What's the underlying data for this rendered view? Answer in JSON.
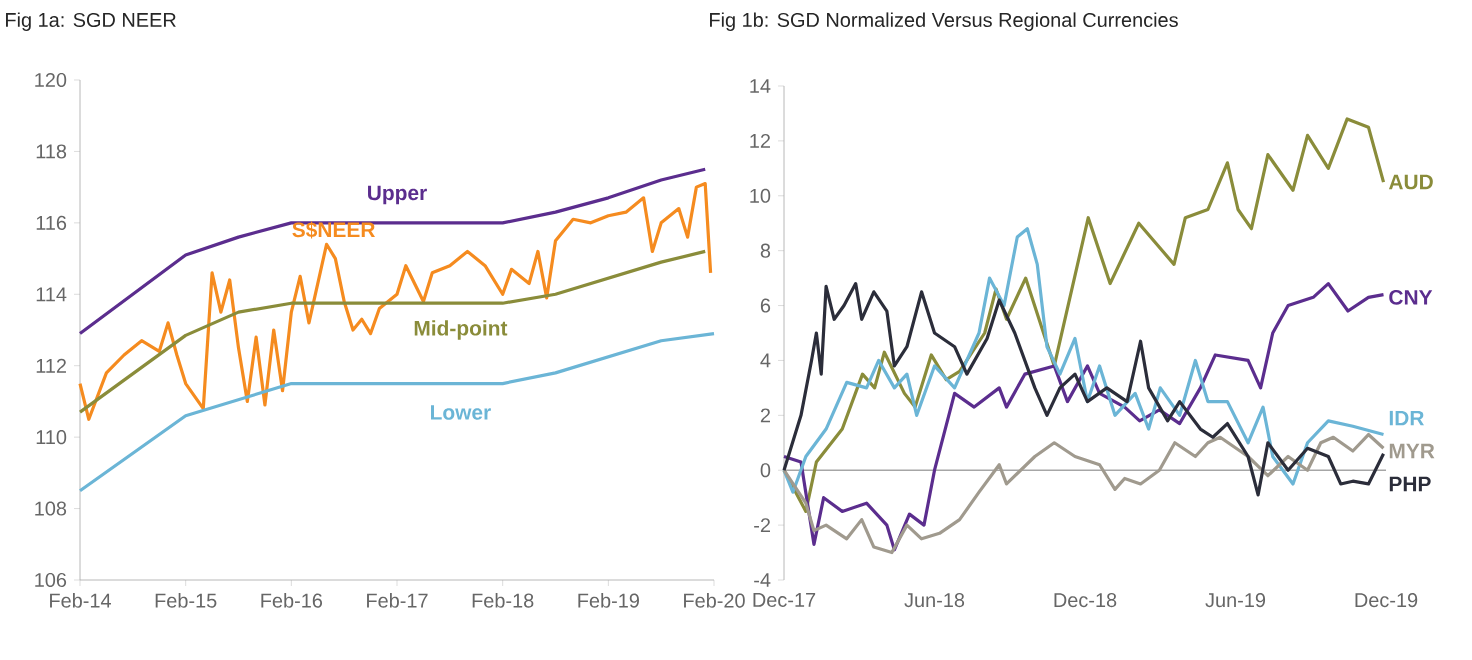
{
  "chart_data": [
    {
      "type": "line",
      "title": "Fig 1a: SGD NEER",
      "xlim": [
        "2014-02",
        "2020-02"
      ],
      "xticks": [
        {
          "value": "2014-02",
          "label": "Feb-14"
        },
        {
          "value": "2015-02",
          "label": "Feb-15"
        },
        {
          "value": "2016-02",
          "label": "Feb-16"
        },
        {
          "value": "2017-02",
          "label": "Feb-17"
        },
        {
          "value": "2018-02",
          "label": "Feb-18"
        },
        {
          "value": "2019-02",
          "label": "Feb-19"
        },
        {
          "value": "2020-02",
          "label": "Feb-20"
        }
      ],
      "ylim": [
        106,
        120
      ],
      "yticks": [
        106,
        108,
        110,
        112,
        114,
        116,
        118,
        120
      ],
      "series": [
        {
          "name": "Upper",
          "color": "#5b2d8e",
          "x": [
            "2014-02",
            "2015-02",
            "2015-08",
            "2016-02",
            "2018-02",
            "2018-08",
            "2019-02",
            "2019-08",
            "2020-01"
          ],
          "values": [
            112.9,
            115.1,
            115.6,
            116.0,
            116.0,
            116.3,
            116.7,
            117.2,
            117.5
          ]
        },
        {
          "name": "S$NEER",
          "color": "#f58b1f",
          "x": [
            "2014-02",
            "2014-03",
            "2014-05",
            "2014-07",
            "2014-09",
            "2014-11",
            "2014-12",
            "2015-01",
            "2015-02",
            "2015-04",
            "2015-05",
            "2015-06",
            "2015-07",
            "2015-08",
            "2015-09",
            "2015-10",
            "2015-11",
            "2015-12",
            "2016-01",
            "2016-02",
            "2016-03",
            "2016-04",
            "2016-06",
            "2016-07",
            "2016-08",
            "2016-09",
            "2016-10",
            "2016-11",
            "2016-12",
            "2017-02",
            "2017-03",
            "2017-05",
            "2017-06",
            "2017-08",
            "2017-10",
            "2017-12",
            "2018-02",
            "2018-03",
            "2018-05",
            "2018-06",
            "2018-07",
            "2018-08",
            "2018-10",
            "2018-12",
            "2019-02",
            "2019-04",
            "2019-06",
            "2019-07",
            "2019-08",
            "2019-10",
            "2019-11",
            "2019-12",
            "2020-01",
            "2020-01-20"
          ],
          "values": [
            111.5,
            110.5,
            111.8,
            112.3,
            112.7,
            112.4,
            113.2,
            112.3,
            111.5,
            110.8,
            114.6,
            113.5,
            114.4,
            112.5,
            111.0,
            112.8,
            110.9,
            113.0,
            111.3,
            113.5,
            114.5,
            113.2,
            115.4,
            115.0,
            113.8,
            113.0,
            113.3,
            112.9,
            113.6,
            114.0,
            114.8,
            113.8,
            114.6,
            114.8,
            115.2,
            114.8,
            114.0,
            114.7,
            114.3,
            115.2,
            113.9,
            115.5,
            116.1,
            116.0,
            116.2,
            116.3,
            116.7,
            115.2,
            116.0,
            116.4,
            115.6,
            117.0,
            117.1,
            114.6
          ]
        },
        {
          "name": "Mid-point",
          "color": "#8a8c3a",
          "x": [
            "2014-02",
            "2015-02",
            "2015-08",
            "2016-02",
            "2018-02",
            "2018-08",
            "2019-08",
            "2020-01"
          ],
          "values": [
            110.7,
            112.85,
            113.5,
            113.75,
            113.75,
            114.0,
            114.9,
            115.2
          ]
        },
        {
          "name": "Lower",
          "color": "#6bb5d6",
          "x": [
            "2014-02",
            "2015-02",
            "2016-02",
            "2018-02",
            "2018-08",
            "2019-08",
            "2020-02"
          ],
          "values": [
            108.5,
            110.6,
            111.5,
            111.5,
            111.8,
            112.7,
            112.9
          ]
        }
      ]
    },
    {
      "type": "line",
      "title": "Fig 1b: SGD Normalized Versus Regional Currencies",
      "xlim": [
        "2017-12",
        "2019-12"
      ],
      "xticks": [
        {
          "value": "2017-12",
          "label": "Dec-17"
        },
        {
          "value": "2018-06",
          "label": "Jun-18"
        },
        {
          "value": "2018-12",
          "label": "Dec-18"
        },
        {
          "value": "2019-06",
          "label": "Jun-19"
        },
        {
          "value": "2019-12",
          "label": "Dec-19"
        }
      ],
      "ylim": [
        -4,
        14
      ],
      "yticks": [
        -4,
        -2,
        0,
        2,
        4,
        6,
        8,
        10,
        12,
        14
      ],
      "ref_lines": [
        {
          "axis": "y",
          "value": 0,
          "color": "#a6a6a6"
        }
      ],
      "series": [
        {
          "name": "AUD",
          "color": "#8a8c3a",
          "x": [
            "2017-12-01",
            "2017-12-28",
            "2018-01-10",
            "2018-02-10",
            "2018-03-05",
            "2018-03-20",
            "2018-04-01",
            "2018-04-25",
            "2018-05-08",
            "2018-05-28",
            "2018-06-15",
            "2018-07-01",
            "2018-08-01",
            "2018-08-15",
            "2018-08-28",
            "2018-09-20",
            "2018-10-25",
            "2018-12-05",
            "2019-01-01",
            "2019-02-05",
            "2019-03-18",
            "2019-04-01",
            "2019-04-28",
            "2019-05-22",
            "2019-06-04",
            "2019-06-20",
            "2019-07-10",
            "2019-08-10",
            "2019-08-28",
            "2019-09-22",
            "2019-10-15",
            "2019-11-10",
            "2019-11-28"
          ],
          "values": [
            0,
            -1.5,
            0.3,
            1.5,
            3.5,
            3.0,
            4.3,
            2.8,
            2.3,
            4.2,
            3.3,
            3.6,
            5.0,
            6.6,
            5.5,
            7.0,
            3.8,
            9.2,
            6.8,
            9.0,
            7.5,
            9.2,
            9.5,
            11.2,
            9.5,
            8.8,
            11.5,
            10.2,
            12.2,
            11.0,
            12.8,
            12.5,
            10.5
          ]
        },
        {
          "name": "CNY",
          "color": "#5b2d8e",
          "x": [
            "2017-12-01",
            "2017-12-22",
            "2018-01-07",
            "2018-01-19",
            "2018-02-10",
            "2018-03-10",
            "2018-04-04",
            "2018-04-13",
            "2018-05-01",
            "2018-05-19",
            "2018-06-01",
            "2018-06-25",
            "2018-07-19",
            "2018-08-19",
            "2018-08-28",
            "2018-09-19",
            "2018-10-25",
            "2018-11-10",
            "2018-12-04",
            "2018-12-19",
            "2019-01-19",
            "2019-02-06",
            "2019-02-28",
            "2019-03-25",
            "2019-04-19",
            "2019-05-07",
            "2019-06-16",
            "2019-07-01",
            "2019-07-16",
            "2019-08-04",
            "2019-09-04",
            "2019-09-22",
            "2019-10-16",
            "2019-11-10",
            "2019-11-28"
          ],
          "values": [
            0.5,
            0.3,
            -2.7,
            -1.0,
            -1.5,
            -1.2,
            -2.0,
            -2.9,
            -1.6,
            -2.0,
            0,
            2.8,
            2.3,
            3.0,
            2.3,
            3.5,
            3.8,
            2.5,
            3.8,
            2.8,
            2.3,
            1.8,
            2.2,
            1.7,
            3.0,
            4.2,
            4.0,
            3.0,
            5.0,
            6.0,
            6.3,
            6.8,
            5.8,
            6.3,
            6.4
          ]
        },
        {
          "name": "IDR",
          "color": "#6bb5d6",
          "x": [
            "2017-12-01",
            "2017-12-12",
            "2017-12-28",
            "2018-01-22",
            "2018-02-15",
            "2018-03-10",
            "2018-03-25",
            "2018-04-13",
            "2018-04-28",
            "2018-05-10",
            "2018-06-01",
            "2018-06-25",
            "2018-07-25",
            "2018-08-07",
            "2018-08-25",
            "2018-09-10",
            "2018-09-22",
            "2018-10-04",
            "2018-10-16",
            "2018-11-01",
            "2018-11-19",
            "2018-12-04",
            "2018-12-19",
            "2019-01-07",
            "2019-02-01",
            "2019-02-16",
            "2019-03-01",
            "2019-03-25",
            "2019-04-13",
            "2019-04-28",
            "2019-05-22",
            "2019-06-16",
            "2019-07-04",
            "2019-07-16",
            "2019-08-10",
            "2019-08-28",
            "2019-09-22",
            "2019-10-22",
            "2019-11-28"
          ],
          "values": [
            0,
            -0.8,
            0.5,
            1.5,
            3.2,
            3.0,
            4.0,
            3.0,
            3.5,
            2.0,
            3.8,
            3.0,
            5.0,
            7.0,
            6.0,
            8.5,
            8.8,
            7.5,
            4.5,
            3.5,
            4.8,
            2.5,
            3.8,
            2.0,
            2.8,
            1.5,
            3.0,
            2.0,
            4.0,
            2.5,
            2.5,
            1.0,
            2.3,
            0.5,
            -0.5,
            1.0,
            1.8,
            1.6,
            1.3
          ]
        },
        {
          "name": "MYR",
          "color": "#a09a8e",
          "x": [
            "2017-12-01",
            "2017-12-28",
            "2018-01-07",
            "2018-01-22",
            "2018-02-15",
            "2018-03-04",
            "2018-03-19",
            "2018-04-10",
            "2018-04-28",
            "2018-05-16",
            "2018-06-07",
            "2018-07-01",
            "2018-07-25",
            "2018-08-19",
            "2018-08-28",
            "2018-10-01",
            "2018-10-25",
            "2018-11-19",
            "2018-12-19",
            "2019-01-07",
            "2019-01-19",
            "2019-02-07",
            "2019-02-28",
            "2019-03-19",
            "2019-04-13",
            "2019-04-28",
            "2019-05-13",
            "2019-06-16",
            "2019-07-10",
            "2019-08-04",
            "2019-08-28",
            "2019-09-13",
            "2019-09-28",
            "2019-10-22",
            "2019-11-10",
            "2019-11-28"
          ],
          "values": [
            0,
            -1.2,
            -2.2,
            -2.0,
            -2.5,
            -1.8,
            -2.8,
            -3.0,
            -2.0,
            -2.5,
            -2.3,
            -1.8,
            -0.8,
            0.2,
            -0.5,
            0.5,
            1.0,
            0.5,
            0.2,
            -0.7,
            -0.3,
            -0.5,
            0,
            1.0,
            0.5,
            1.0,
            1.2,
            0.5,
            -0.2,
            0.5,
            0,
            1.0,
            1.2,
            0.7,
            1.3,
            0.8
          ]
        },
        {
          "name": "PHP",
          "color": "#2b2d3a",
          "x": [
            "2017-12-01",
            "2017-12-22",
            "2018-01-04",
            "2018-01-10",
            "2018-01-16",
            "2018-01-22",
            "2018-02-01",
            "2018-02-12",
            "2018-02-25",
            "2018-03-04",
            "2018-03-19",
            "2018-04-04",
            "2018-04-13",
            "2018-04-28",
            "2018-05-16",
            "2018-06-01",
            "2018-06-25",
            "2018-07-10",
            "2018-08-04",
            "2018-08-19",
            "2018-09-07",
            "2018-10-01",
            "2018-10-16",
            "2018-11-01",
            "2018-11-19",
            "2018-12-04",
            "2018-12-28",
            "2019-01-22",
            "2019-02-07",
            "2019-02-16",
            "2019-03-10",
            "2019-03-25",
            "2019-04-19",
            "2019-05-04",
            "2019-05-22",
            "2019-06-16",
            "2019-06-28",
            "2019-07-10",
            "2019-08-04",
            "2019-08-28",
            "2019-09-22",
            "2019-10-07",
            "2019-10-22",
            "2019-11-10",
            "2019-11-28"
          ],
          "values": [
            0,
            2.0,
            4.0,
            5.0,
            3.5,
            6.7,
            5.5,
            6.0,
            6.8,
            5.5,
            6.5,
            5.8,
            3.8,
            4.5,
            6.5,
            5.0,
            4.5,
            3.5,
            4.8,
            6.2,
            5.0,
            3.0,
            2.0,
            3.0,
            3.5,
            2.5,
            3.0,
            2.5,
            4.7,
            3.0,
            1.8,
            2.5,
            1.5,
            1.2,
            1.7,
            0.5,
            -0.9,
            1.0,
            0,
            0.8,
            0.5,
            -0.5,
            -0.4,
            -0.5,
            0.6
          ]
        }
      ]
    }
  ]
}
